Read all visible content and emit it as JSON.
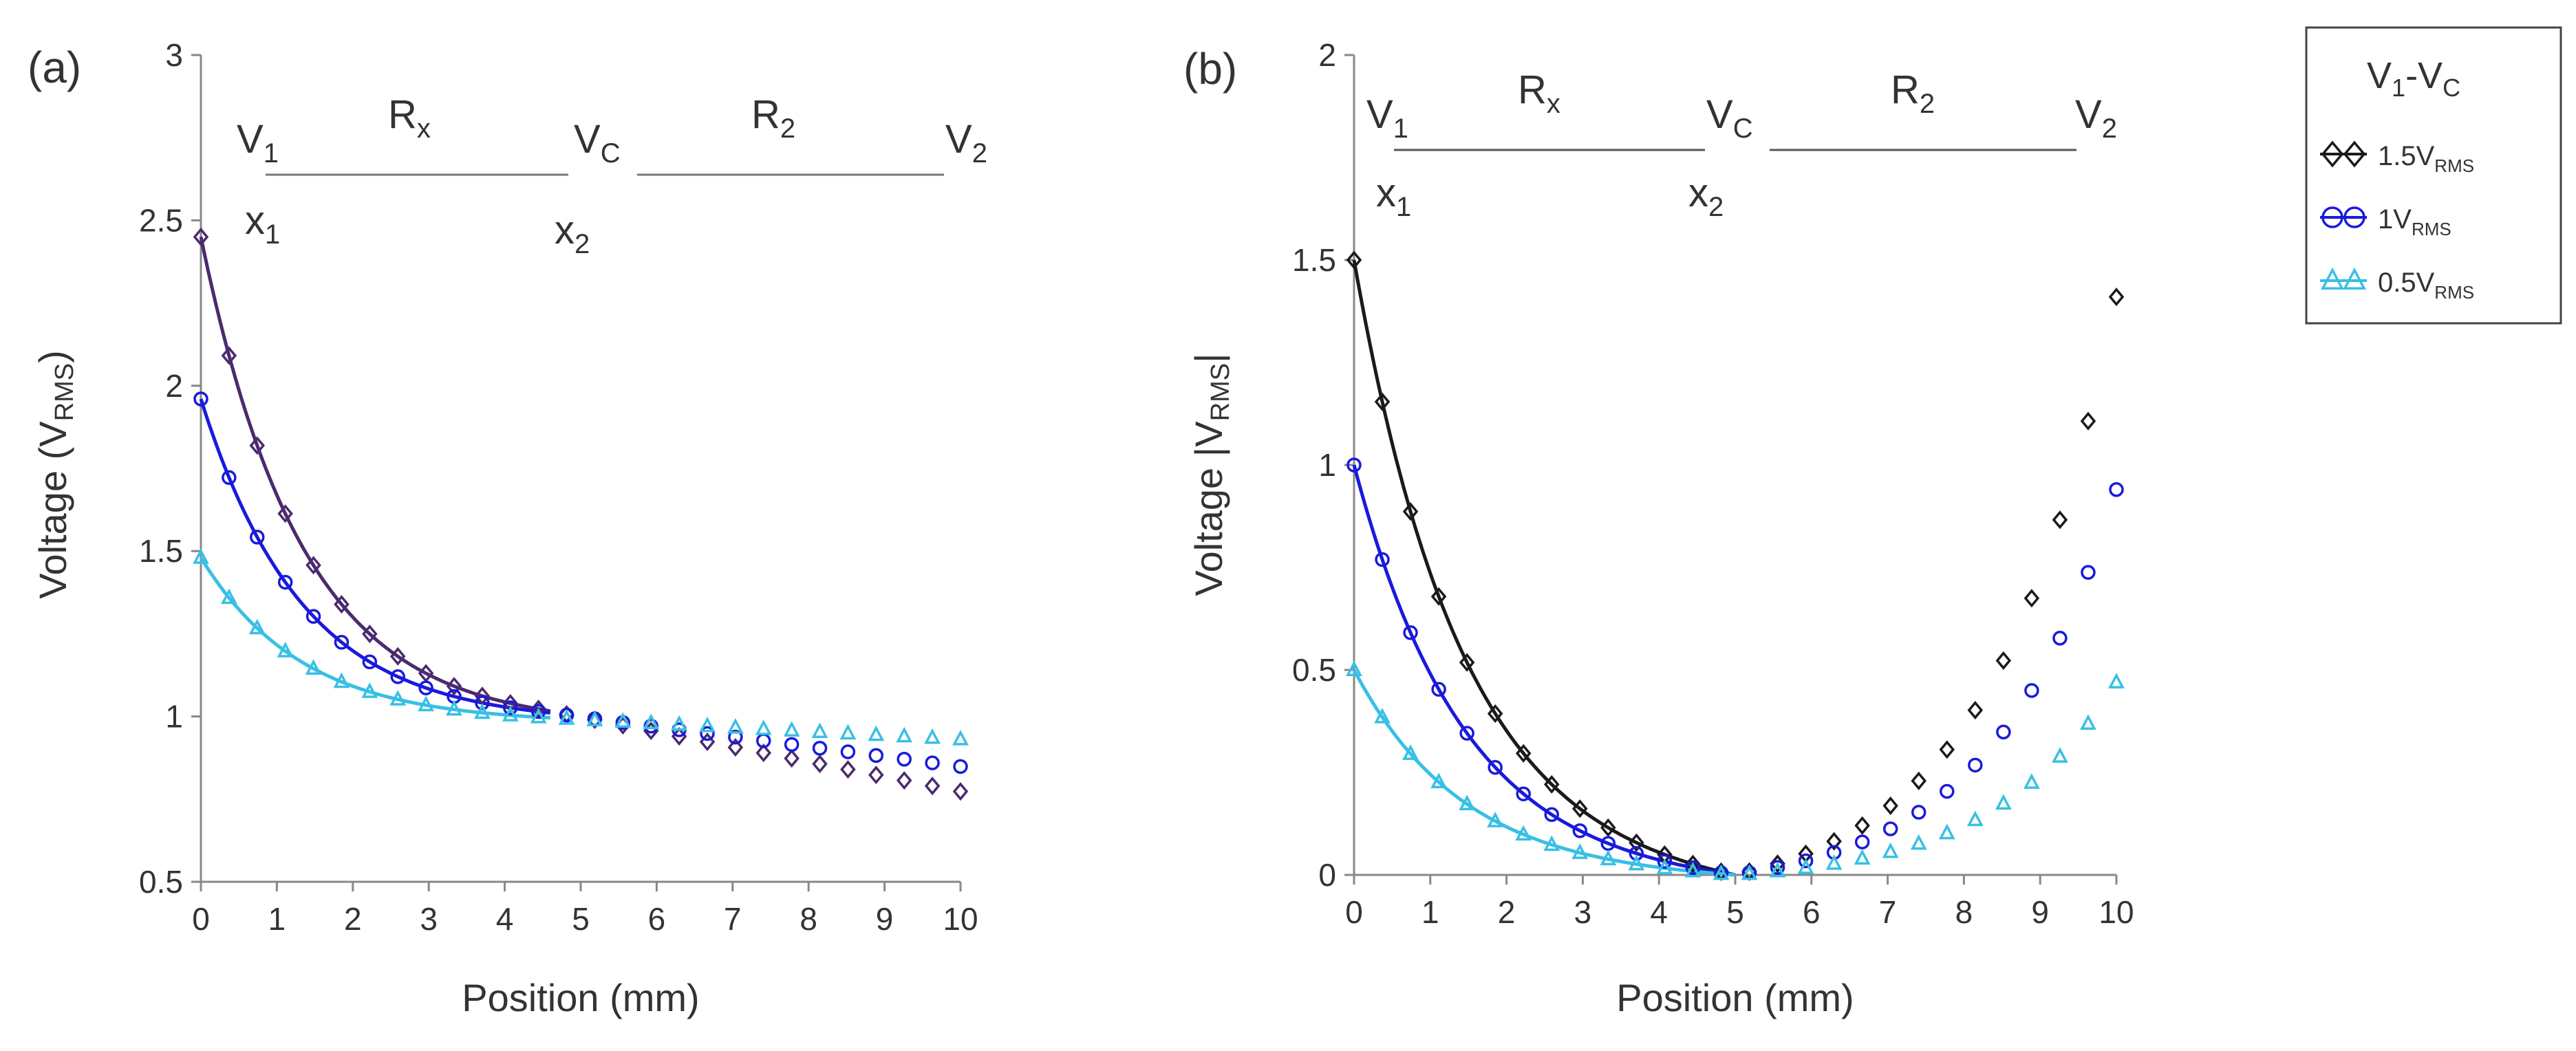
{
  "chart_data": [
    {
      "type": "scatter",
      "panel_label": "(a)",
      "xlabel": "Position (mm)",
      "ylabel": "Voltage (V",
      "ylabel_sub": "RMS",
      "ylabel_end": ")",
      "xlim": [
        0,
        10
      ],
      "ylim": [
        0.5,
        3
      ],
      "x_ticks": [
        "0",
        "1",
        "2",
        "3",
        "4",
        "5",
        "6",
        "7",
        "8",
        "9",
        "10"
      ],
      "y_ticks": [
        "0.5",
        "1",
        "1.5",
        "2",
        "2.5",
        "3"
      ],
      "y_tick_values": [
        0.5,
        1,
        1.5,
        2,
        2.5,
        3
      ],
      "schematic": {
        "v1": "V",
        "v1_sub": "1",
        "rx": "R",
        "rx_sub": "x",
        "vc": "V",
        "vc_sub": "C",
        "r2": "R",
        "r2_sub": "2",
        "v2": "V",
        "v2_sub": "2",
        "x1": "x",
        "x1_sub": "1",
        "x2": "x",
        "x2_sub": "2"
      },
      "series": [
        {
          "name": "1.5V_RMS",
          "color": "#4b2a6e",
          "marker": "diamond",
          "fit": {
            "a": 1.48,
            "k": 0.75,
            "c": 0.97,
            "m": 0.045
          }
        },
        {
          "name": "1V_RMS",
          "color": "#1a1adb",
          "marker": "circle",
          "fit": {
            "a": 0.98,
            "k": 0.75,
            "c": 0.98,
            "m": 0.03
          }
        },
        {
          "name": "0.5V_RMS",
          "color": "#38c0e4",
          "marker": "triangle",
          "fit": {
            "a": 0.5,
            "k": 0.75,
            "c": 0.98,
            "m": 0.012
          }
        }
      ]
    },
    {
      "type": "scatter",
      "panel_label": "(b)",
      "xlabel": "Position (mm)",
      "ylabel": "Voltage |V",
      "ylabel_sub": "RMS",
      "ylabel_end": "|",
      "xlim": [
        0,
        10
      ],
      "ylim": [
        0,
        2
      ],
      "x_ticks": [
        "0",
        "1",
        "2",
        "3",
        "4",
        "5",
        "6",
        "7",
        "8",
        "9",
        "10"
      ],
      "y_ticks": [
        "0",
        "0.5",
        "1",
        "1.5",
        "2"
      ],
      "y_tick_values": [
        0,
        0.5,
        1,
        1.5,
        2
      ],
      "schematic": {
        "v1": "V",
        "v1_sub": "1",
        "rx": "R",
        "rx_sub": "x",
        "vc": "V",
        "vc_sub": "C",
        "r2": "R",
        "r2_sub": "2",
        "v2": "V",
        "v2_sub": "2",
        "x1": "x",
        "x1_sub": "1",
        "x2": "x",
        "x2_sub": "2"
      },
      "series": [
        {
          "name": "1.5V_RMS",
          "color": "#1a1a1a",
          "marker": "diamond",
          "amplitude": 1.5,
          "k": 0.7,
          "k2": 0.62,
          "right_end": 1.41
        },
        {
          "name": "1V_RMS",
          "color": "#1a1adb",
          "marker": "circle",
          "amplitude": 1.0,
          "k": 0.7,
          "k2": 0.62,
          "right_end": 0.94
        },
        {
          "name": "0.5V_RMS",
          "color": "#38c0e4",
          "marker": "triangle",
          "amplitude": 0.5,
          "k": 0.7,
          "k2": 0.62,
          "right_end": 0.47
        }
      ]
    }
  ],
  "legend": {
    "title": "V",
    "title_sub": "1",
    "title_mid": "-V",
    "title_sub2": "C",
    "entries": [
      {
        "prefix": "1.5V",
        "sub": "RMS",
        "color": "#1a1a1a",
        "marker": "diamond"
      },
      {
        "prefix": "1V",
        "sub": "RMS",
        "color": "#1a1adb",
        "marker": "circle"
      },
      {
        "prefix": "0.5V",
        "sub": "RMS",
        "color": "#38c0e4",
        "marker": "triangle"
      }
    ]
  }
}
